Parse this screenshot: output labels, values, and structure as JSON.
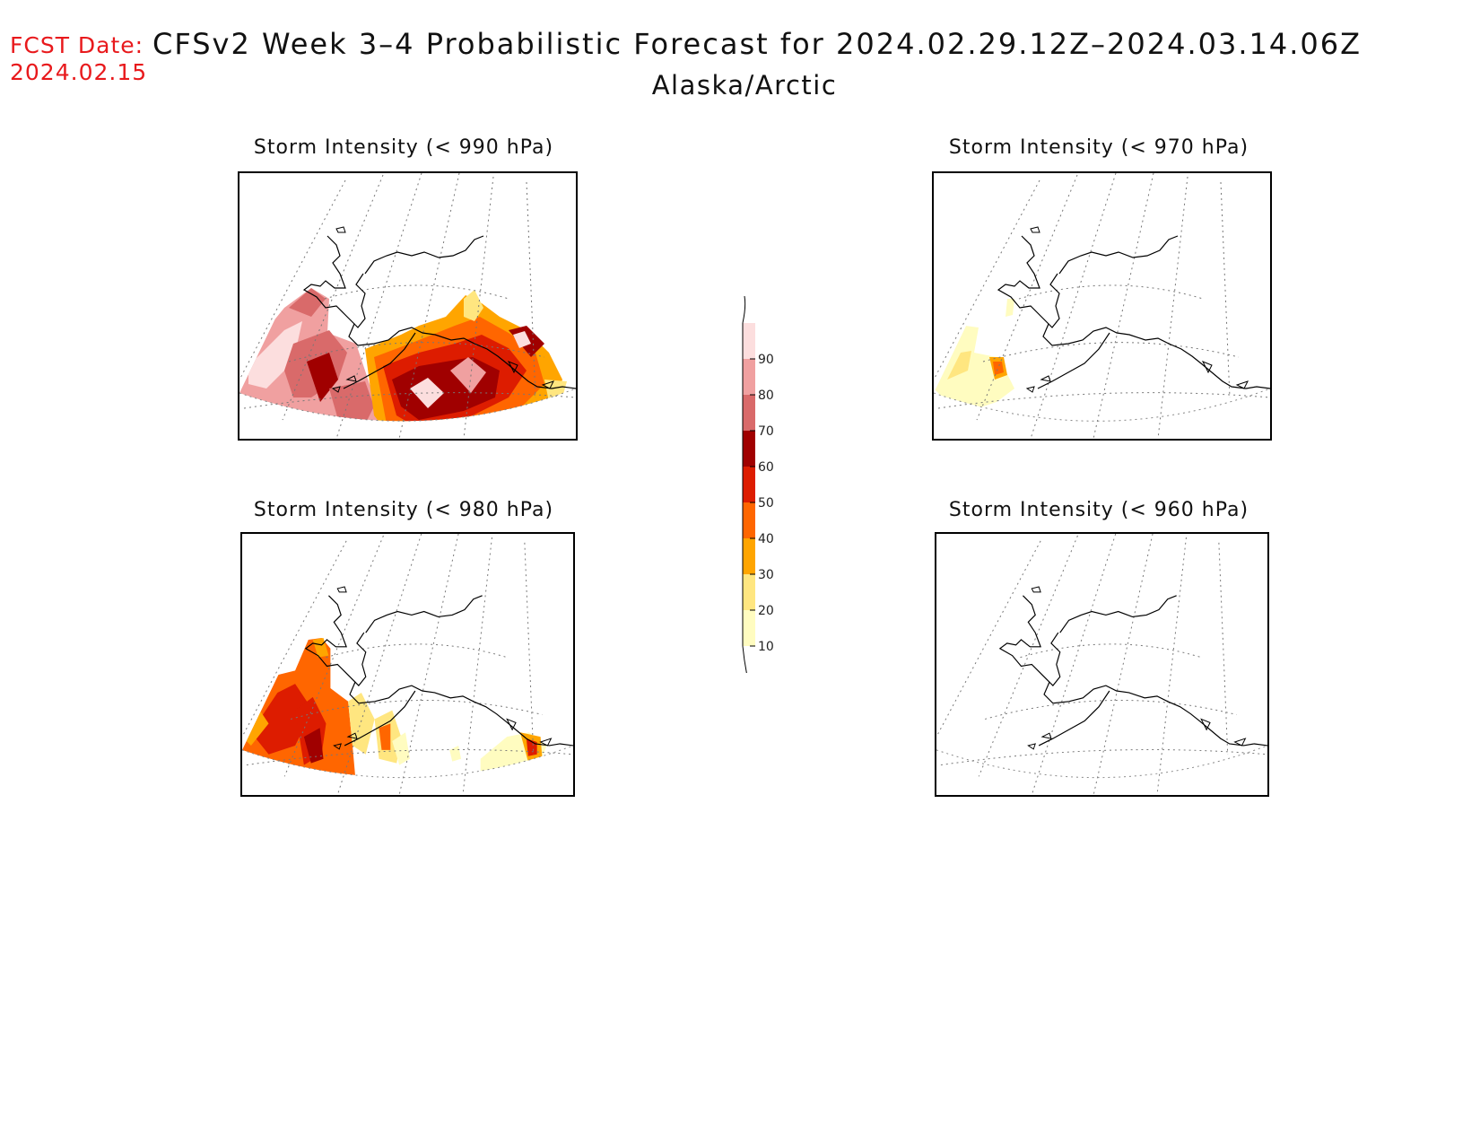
{
  "header": {
    "fcst_label": "FCST Date:",
    "fcst_date": "2024.02.15",
    "title": "CFSv2 Week 3–4 Probabilistic Forecast for 2024.02.29.12Z–2024.03.14.06Z",
    "subtitle": "Alaska/Arctic"
  },
  "panels": [
    {
      "id": "p990",
      "title": "Storm Intensity (< 990 hPa)",
      "intensity": "high"
    },
    {
      "id": "p970",
      "title": "Storm Intensity (< 970 hPa)",
      "intensity": "low"
    },
    {
      "id": "p980",
      "title": "Storm Intensity (< 980 hPa)",
      "intensity": "medium"
    },
    {
      "id": "p960",
      "title": "Storm Intensity (< 960 hPa)",
      "intensity": "none"
    }
  ],
  "colorbar": {
    "levels": [
      "10",
      "20",
      "30",
      "40",
      "50",
      "60",
      "70",
      "80",
      "90"
    ],
    "colors": [
      "#fffcc0",
      "#ffe680",
      "#ffa500",
      "#ff6600",
      "#dd1c00",
      "#a00000",
      "#d96a6a",
      "#f0a0a0",
      "#fcdede"
    ]
  }
}
